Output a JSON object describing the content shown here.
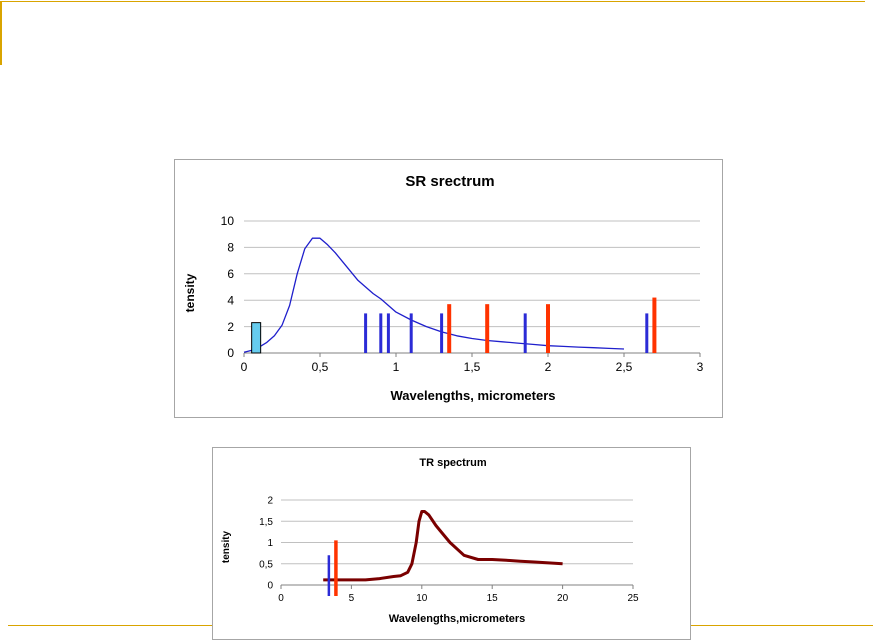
{
  "colors": {
    "decoration": "#d9a400",
    "grid": "#c0c0c0",
    "sr_curve": "#1f1fcc",
    "blue_bar": "#2b2bd6",
    "red_bar": "#ff3300",
    "cyan_bar": "#66ccee",
    "tr_curve": "#7a0000"
  },
  "chart_data": [
    {
      "type": "line",
      "title": "SR srectrum",
      "xlabel": "Wavelengths, micrometers",
      "ylabel": "tensity",
      "xlim": [
        0,
        3
      ],
      "ylim": [
        0,
        10
      ],
      "x_ticks": [
        "0",
        "0,5",
        "1",
        "1,5",
        "2",
        "2,5",
        "3"
      ],
      "y_ticks": [
        "0",
        "2",
        "4",
        "6",
        "8",
        "10"
      ],
      "grid": true,
      "series": [
        {
          "x": [
            0,
            0.05,
            0.1,
            0.15,
            0.2,
            0.25,
            0.3,
            0.35,
            0.4,
            0.45,
            0.5,
            0.55,
            0.6,
            0.65,
            0.7,
            0.75,
            0.8,
            0.85,
            0.9,
            0.95,
            1.0,
            1.1,
            1.2,
            1.3,
            1.4,
            1.5,
            1.6,
            1.7,
            1.8,
            1.9,
            2.0,
            2.1,
            2.2,
            2.3,
            2.4,
            2.5
          ],
          "y": [
            0.05,
            0.2,
            0.45,
            0.8,
            1.3,
            2.1,
            3.6,
            6.0,
            7.9,
            8.7,
            8.7,
            8.2,
            7.6,
            6.9,
            6.2,
            5.5,
            5.0,
            4.5,
            4.1,
            3.6,
            3.1,
            2.5,
            2.0,
            1.6,
            1.3,
            1.1,
            0.95,
            0.85,
            0.75,
            0.65,
            0.55,
            0.5,
            0.45,
            0.4,
            0.35,
            0.3
          ]
        }
      ],
      "bars": [
        {
          "x": 0.08,
          "height": 2.3,
          "color": "cyan"
        },
        {
          "x": 0.8,
          "height": 3.0,
          "color": "blue"
        },
        {
          "x": 0.9,
          "height": 3.0,
          "color": "blue"
        },
        {
          "x": 0.95,
          "height": 3.0,
          "color": "blue"
        },
        {
          "x": 1.1,
          "height": 3.0,
          "color": "blue"
        },
        {
          "x": 1.3,
          "height": 3.0,
          "color": "blue"
        },
        {
          "x": 1.35,
          "height": 3.7,
          "color": "red"
        },
        {
          "x": 1.6,
          "height": 3.7,
          "color": "red"
        },
        {
          "x": 1.85,
          "height": 3.0,
          "color": "blue"
        },
        {
          "x": 2.0,
          "height": 3.7,
          "color": "red"
        },
        {
          "x": 2.65,
          "height": 3.0,
          "color": "blue"
        },
        {
          "x": 2.7,
          "height": 4.2,
          "color": "red"
        }
      ]
    },
    {
      "type": "line",
      "title": "TR spectrum",
      "xlabel": "Wavelengths,micrometers",
      "ylabel": "tensity",
      "xlim": [
        0,
        25
      ],
      "ylim": [
        0,
        2
      ],
      "x_ticks": [
        "0",
        "5",
        "10",
        "15",
        "20",
        "25"
      ],
      "y_ticks": [
        "0",
        "0,5",
        "1",
        "1,5",
        "2"
      ],
      "grid": true,
      "series": [
        {
          "x": [
            3,
            4,
            5,
            6,
            7,
            8,
            8.5,
            9,
            9.3,
            9.6,
            9.8,
            10,
            10.2,
            10.5,
            11,
            11.5,
            12,
            13,
            14,
            15,
            16,
            17,
            18,
            19,
            20
          ],
          "y": [
            0.12,
            0.12,
            0.12,
            0.12,
            0.15,
            0.2,
            0.22,
            0.3,
            0.5,
            1.0,
            1.5,
            1.73,
            1.73,
            1.65,
            1.4,
            1.2,
            1.0,
            0.7,
            0.6,
            0.6,
            0.58,
            0.56,
            0.54,
            0.52,
            0.5
          ]
        }
      ],
      "bars": [
        {
          "x": 3.4,
          "height": 0.7,
          "color": "blue"
        },
        {
          "x": 3.9,
          "height": 1.05,
          "color": "red"
        }
      ]
    }
  ]
}
